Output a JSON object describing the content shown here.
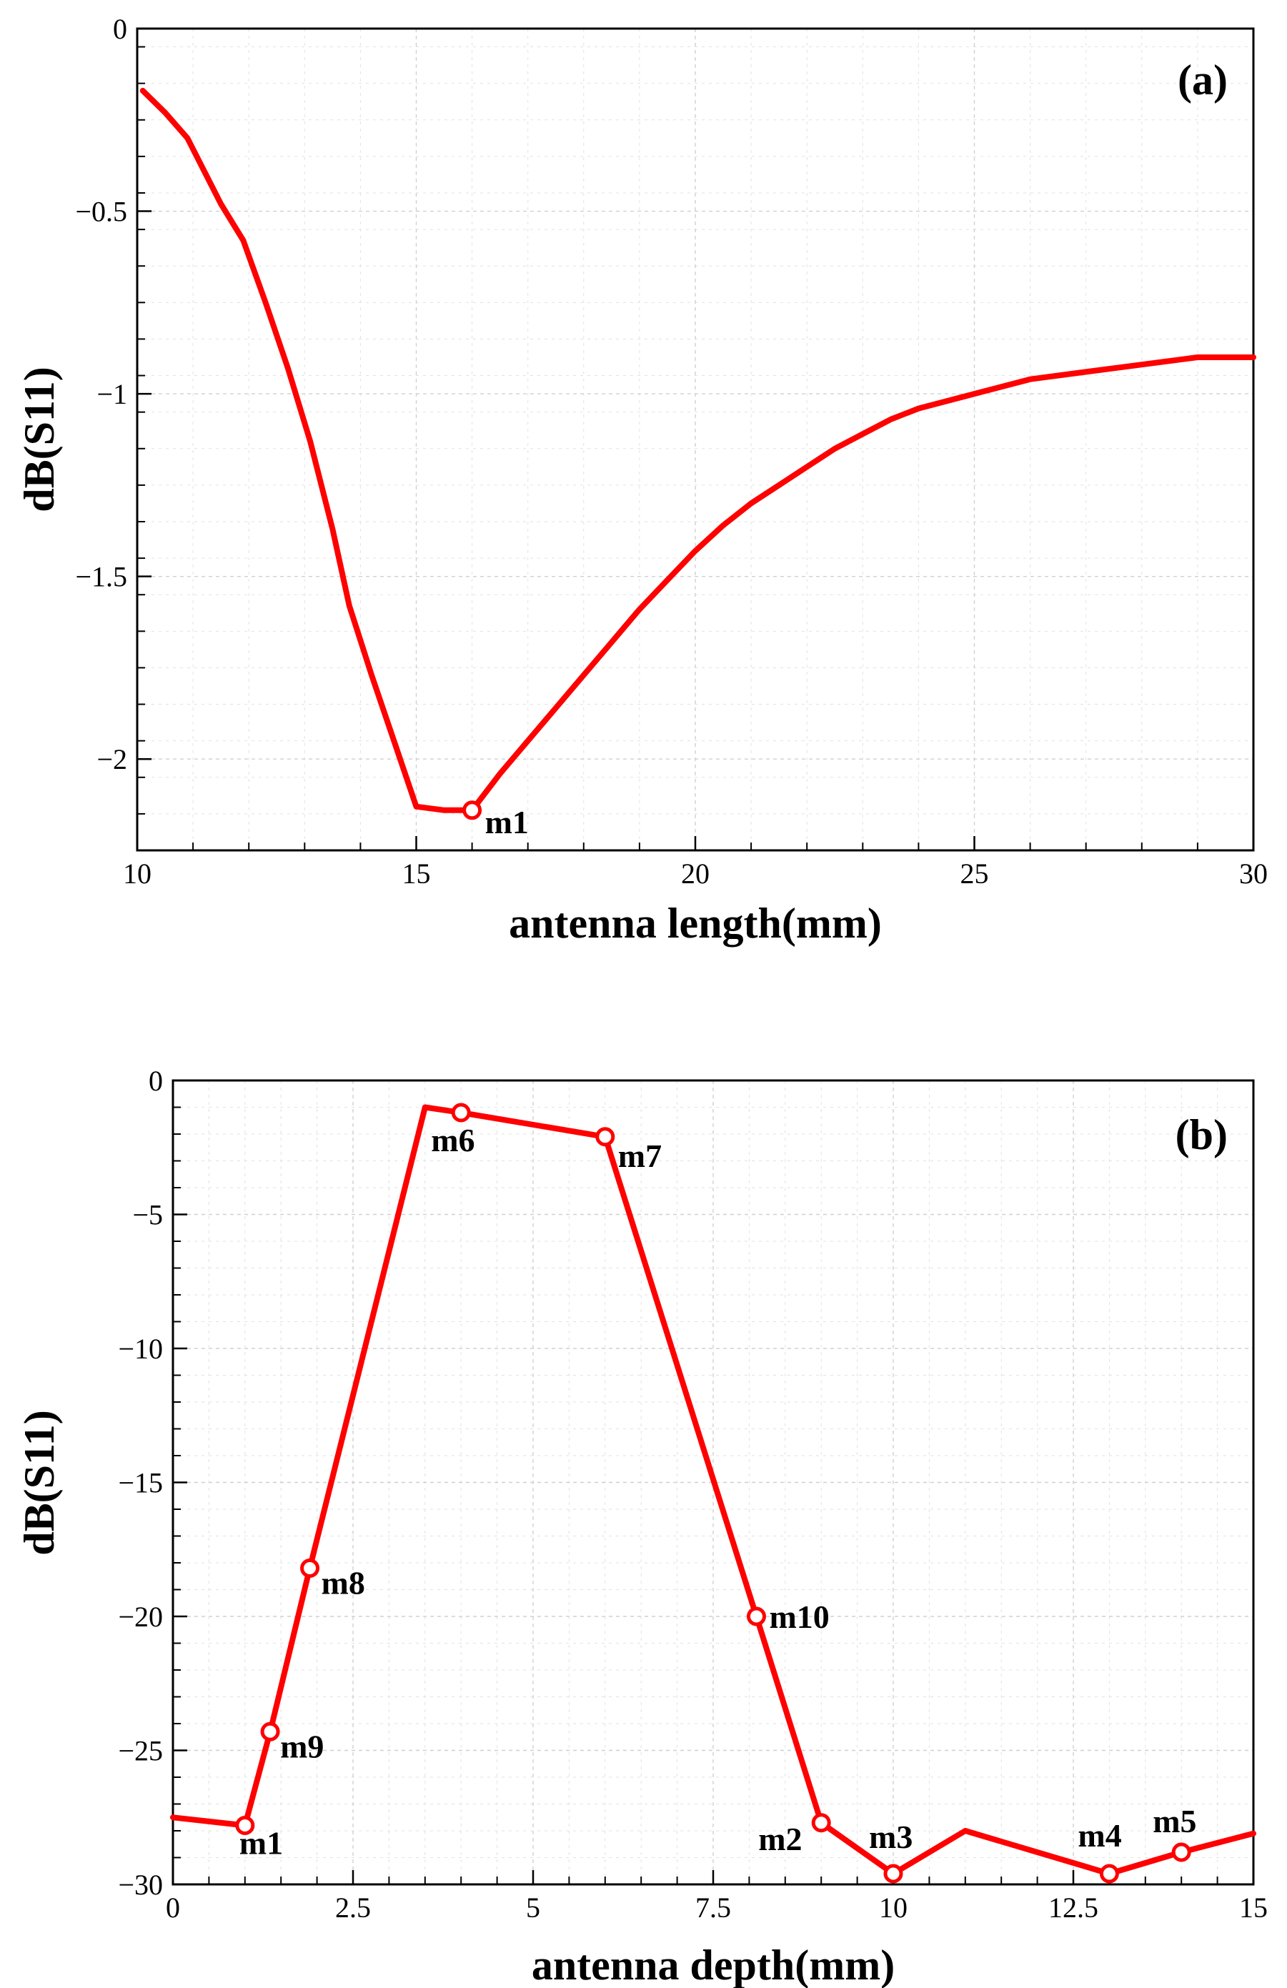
{
  "chart_data": [
    {
      "type": "line",
      "panel_label": "(a)",
      "xlabel": "antenna length(mm)",
      "ylabel": "dB(S11)",
      "xlim": [
        10,
        30
      ],
      "ylim": [
        -2.25,
        0
      ],
      "x_ticks": [
        10,
        15,
        20,
        25,
        30
      ],
      "x_tick_labels": [
        "10",
        "15",
        "20",
        "25",
        "30"
      ],
      "y_ticks": [
        0,
        -0.5,
        -1,
        -1.5,
        -2
      ],
      "y_tick_labels": [
        "0",
        "−0.5",
        "−1",
        "−1.5",
        "−2"
      ],
      "grid": true,
      "series": [
        {
          "name": "dB(S11)",
          "color": "#ff0000",
          "x": [
            10.1,
            10.5,
            10.9,
            11.2,
            11.5,
            11.9,
            12.3,
            12.7,
            13.1,
            13.5,
            13.8,
            14.2,
            14.6,
            15.0,
            15.5,
            16.0,
            16.5,
            17.0,
            17.5,
            18.0,
            18.5,
            19.0,
            19.5,
            20.0,
            20.5,
            21.0,
            21.5,
            22.0,
            22.5,
            23.0,
            23.5,
            24.0,
            25.0,
            26.0,
            27.0,
            28.0,
            29.0,
            30.0
          ],
          "values": [
            -0.17,
            -0.23,
            -0.3,
            -0.39,
            -0.48,
            -0.58,
            -0.75,
            -0.93,
            -1.13,
            -1.37,
            -1.58,
            -1.77,
            -1.95,
            -2.13,
            -2.14,
            -2.14,
            -2.04,
            -1.95,
            -1.86,
            -1.77,
            -1.68,
            -1.59,
            -1.51,
            -1.43,
            -1.36,
            -1.3,
            -1.25,
            -1.2,
            -1.15,
            -1.11,
            -1.07,
            -1.04,
            -1.0,
            -0.96,
            -0.94,
            -0.92,
            -0.9,
            -0.9
          ]
        }
      ],
      "markers": [
        {
          "name": "m1",
          "x": 16.0,
          "y": -2.14
        }
      ]
    },
    {
      "type": "line",
      "panel_label": "(b)",
      "xlabel": "antenna depth(mm)",
      "ylabel": "dB(S11)",
      "xlim": [
        0,
        15
      ],
      "ylim": [
        -30,
        0
      ],
      "x_ticks": [
        0,
        2.5,
        5,
        7.5,
        10,
        12.5,
        15
      ],
      "x_tick_labels": [
        "0",
        "2.5",
        "5",
        "7.5",
        "10",
        "12.5",
        "15"
      ],
      "y_ticks": [
        0,
        -5,
        -10,
        -15,
        -20,
        -25,
        -30
      ],
      "y_tick_labels": [
        "0",
        "−5",
        "−10",
        "−15",
        "−20",
        "−25",
        "−30"
      ],
      "grid": true,
      "series": [
        {
          "name": "dB(S11)",
          "color": "#ff0000",
          "x": [
            0,
            1.0,
            1.35,
            1.9,
            3.5,
            4.0,
            6.0,
            8.1,
            9.0,
            10.0,
            11.0,
            13.0,
            14.0,
            15.0
          ],
          "values": [
            -27.5,
            -27.8,
            -24.3,
            -18.2,
            -1.0,
            -1.2,
            -2.1,
            -20.0,
            -27.7,
            -29.6,
            -28.0,
            -29.6,
            -28.8,
            -28.1
          ]
        }
      ],
      "markers": [
        {
          "name": "m1",
          "x": 1.0,
          "y": -27.8
        },
        {
          "name": "m9",
          "x": 1.35,
          "y": -24.3
        },
        {
          "name": "m8",
          "x": 1.9,
          "y": -18.2
        },
        {
          "name": "m6",
          "x": 4.0,
          "y": -1.2
        },
        {
          "name": "m7",
          "x": 6.0,
          "y": -2.1
        },
        {
          "name": "m10",
          "x": 8.1,
          "y": -20.0
        },
        {
          "name": "m2",
          "x": 9.0,
          "y": -27.7
        },
        {
          "name": "m3",
          "x": 10.0,
          "y": -29.6
        },
        {
          "name": "m4",
          "x": 13.0,
          "y": -29.6
        },
        {
          "name": "m5",
          "x": 14.0,
          "y": -28.8
        }
      ]
    }
  ]
}
